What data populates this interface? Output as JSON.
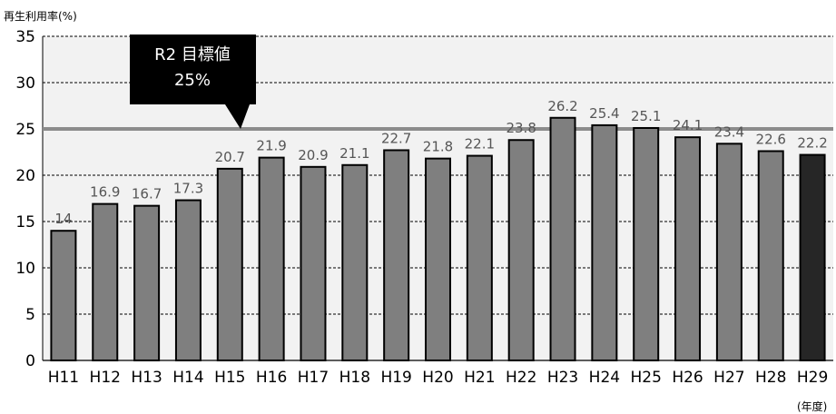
{
  "chart_data": {
    "type": "bar",
    "ylabel": "再生利用率(%)",
    "xunit": "(年度)",
    "ylim": [
      0,
      35
    ],
    "yticks": [
      0,
      5,
      10,
      15,
      20,
      25,
      30,
      35
    ],
    "grid": "horizontal-dashed",
    "categories": [
      "H11",
      "H12",
      "H13",
      "H14",
      "H15",
      "H16",
      "H17",
      "H18",
      "H19",
      "H20",
      "H21",
      "H22",
      "H23",
      "H24",
      "H25",
      "H26",
      "H27",
      "H28",
      "H29"
    ],
    "values": [
      14,
      16.9,
      16.7,
      17.3,
      20.7,
      21.9,
      20.9,
      21.1,
      22.7,
      21.8,
      22.1,
      23.8,
      26.2,
      25.4,
      25.1,
      24.1,
      23.4,
      22.6,
      22.2
    ],
    "highlight_category": "H29",
    "target": {
      "value": 25,
      "line1": "R2  目標値",
      "line2": "25%"
    },
    "colors": {
      "bar": "#7f7f7f",
      "bar_highlight": "#262626",
      "target_line": "#8c8c8c",
      "plot_bg": "#f2f2f2",
      "callout": "#000000"
    }
  }
}
